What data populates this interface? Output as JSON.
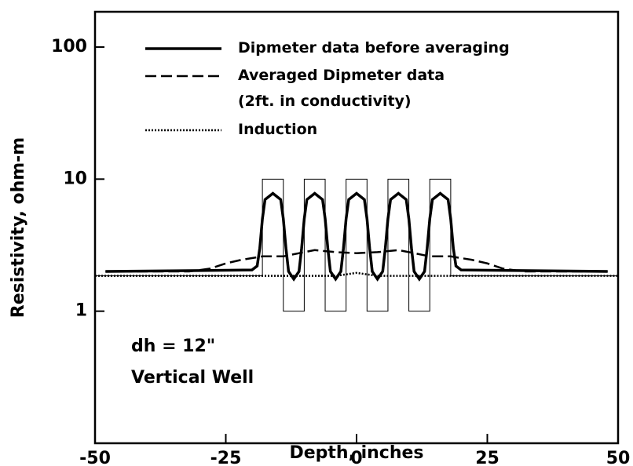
{
  "chart_data": {
    "type": "line",
    "x_label": "Depth, inches",
    "y_label": "Resistivity, ohm-m",
    "xlim": [
      -50,
      50
    ],
    "xticks": [
      -50,
      -25,
      0,
      25,
      50
    ],
    "ylim": [
      0.1,
      185
    ],
    "yticks": [
      1,
      10,
      100
    ],
    "log_y": true,
    "legend": "top-left",
    "annotations": [
      "dh = 12\"",
      "Vertical Well"
    ],
    "series": [
      {
        "color": "#000000",
        "dash": "solid",
        "line_width": 1,
        "x": [
          -50,
          -18,
          -18,
          -14,
          -14,
          -10,
          -10,
          -6,
          -6,
          -2,
          -2,
          2,
          2,
          6,
          6,
          10,
          10,
          14,
          14,
          18,
          18,
          50
        ],
        "values": [
          1.85,
          1.85,
          10,
          10,
          1,
          1,
          10,
          10,
          1,
          1,
          10,
          10,
          1,
          1,
          10,
          10,
          1,
          1,
          10,
          10,
          1.85,
          1.85
        ]
      },
      {
        "name": "Dipmeter data before averaging",
        "color": "#000000",
        "dash": "solid",
        "line_width": 3.5,
        "x": [
          -48,
          -20,
          -19,
          -18.5,
          -18,
          -17.5,
          -16,
          -14.5,
          -14,
          -13.5,
          -13,
          -12,
          -11,
          -10.5,
          -10,
          -9.5,
          -8,
          -6.5,
          -6,
          -5.5,
          -5,
          -4,
          -3,
          -2.5,
          -2,
          -1.5,
          0,
          1.5,
          2,
          2.5,
          3,
          4,
          5,
          5.5,
          6,
          6.5,
          8,
          9.5,
          10,
          10.5,
          11,
          12,
          13,
          13.5,
          14,
          14.5,
          16,
          17.5,
          18,
          18.5,
          19,
          20,
          48
        ],
        "values": [
          2,
          2.05,
          2.2,
          3,
          5,
          7,
          7.8,
          7,
          5,
          3,
          2,
          1.75,
          2,
          3,
          5,
          7,
          7.8,
          7,
          5,
          3,
          2,
          1.75,
          2,
          3,
          5,
          7,
          7.8,
          7,
          5,
          3,
          2,
          1.75,
          2,
          3,
          5,
          7,
          7.8,
          7,
          5,
          3,
          2,
          1.75,
          2,
          3,
          5,
          7,
          7.8,
          7,
          5,
          3,
          2.2,
          2.05,
          2
        ]
      },
      {
        "name": "Averaged Dipmeter data\n(2ft. in conductivity)",
        "color": "#000000",
        "dash": "dashed",
        "line_width": 2.5,
        "x": [
          -48,
          -32,
          -28,
          -25,
          -22,
          -18,
          -14,
          -10,
          -8,
          -4,
          0,
          4,
          8,
          10,
          14,
          18,
          22,
          25,
          28,
          32,
          48
        ],
        "values": [
          2,
          2,
          2.1,
          2.3,
          2.45,
          2.6,
          2.6,
          2.8,
          2.9,
          2.8,
          2.75,
          2.8,
          2.9,
          2.8,
          2.6,
          2.6,
          2.45,
          2.3,
          2.1,
          2,
          2
        ]
      },
      {
        "name": "Induction",
        "color": "#000000",
        "dash": "dotted",
        "line_width": 2.5,
        "x": [
          -50,
          -4,
          -2,
          0,
          2,
          4,
          50
        ],
        "values": [
          1.85,
          1.85,
          1.9,
          1.95,
          1.9,
          1.85,
          1.85
        ]
      }
    ]
  }
}
